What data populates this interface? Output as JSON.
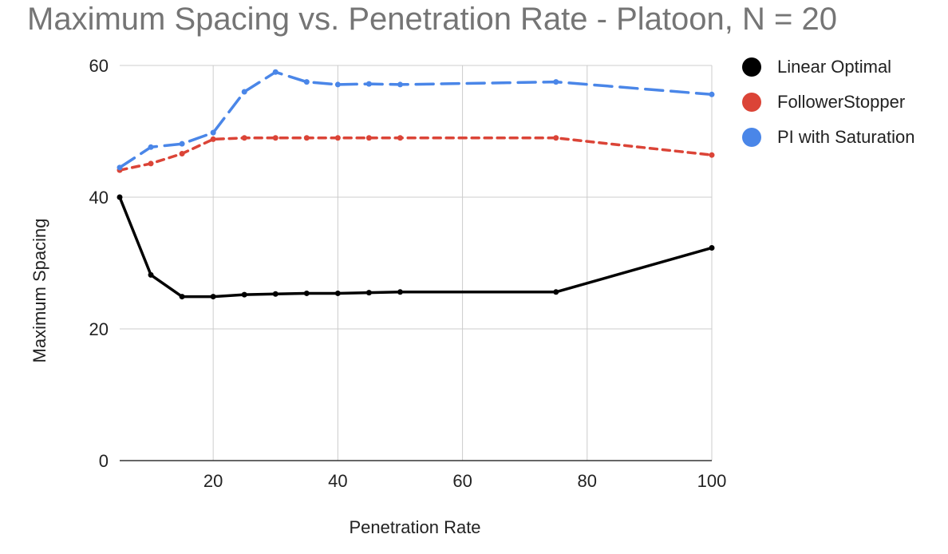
{
  "chart_data": {
    "type": "line",
    "title": "Maximum Spacing vs. Penetration Rate - Platoon, N = 20",
    "xlabel": "Penetration Rate",
    "ylabel": "Maximum Spacing",
    "xlim": [
      5,
      100
    ],
    "ylim": [
      0,
      60
    ],
    "xticks": [
      20,
      40,
      60,
      80,
      100
    ],
    "yticks": [
      0,
      20,
      40,
      60
    ],
    "grid": true,
    "legend_position": "right",
    "series": [
      {
        "name": "Linear Optimal",
        "color": "#000000",
        "dash": "solid",
        "x": [
          5,
          10,
          15,
          20,
          25,
          30,
          35,
          40,
          45,
          50,
          75,
          100
        ],
        "y": [
          40,
          28.2,
          24.9,
          24.9,
          25.2,
          25.3,
          25.4,
          25.4,
          25.5,
          25.6,
          25.6,
          32.3
        ]
      },
      {
        "name": "FollowerStopper",
        "color": "#db4437",
        "dash": "short",
        "x": [
          5,
          10,
          15,
          20,
          25,
          30,
          35,
          40,
          45,
          50,
          75,
          100
        ],
        "y": [
          44.1,
          45.1,
          46.6,
          48.8,
          49.0,
          49.0,
          49.0,
          49.0,
          49.0,
          49.0,
          49.0,
          46.4
        ]
      },
      {
        "name": "PI with Saturation",
        "color": "#4a86e8",
        "dash": "long",
        "x": [
          5,
          10,
          15,
          20,
          25,
          30,
          35,
          40,
          45,
          50,
          75,
          100
        ],
        "y": [
          44.5,
          47.6,
          48.1,
          49.8,
          56.0,
          59.0,
          57.5,
          57.1,
          57.2,
          57.1,
          57.5,
          55.6
        ]
      }
    ]
  }
}
